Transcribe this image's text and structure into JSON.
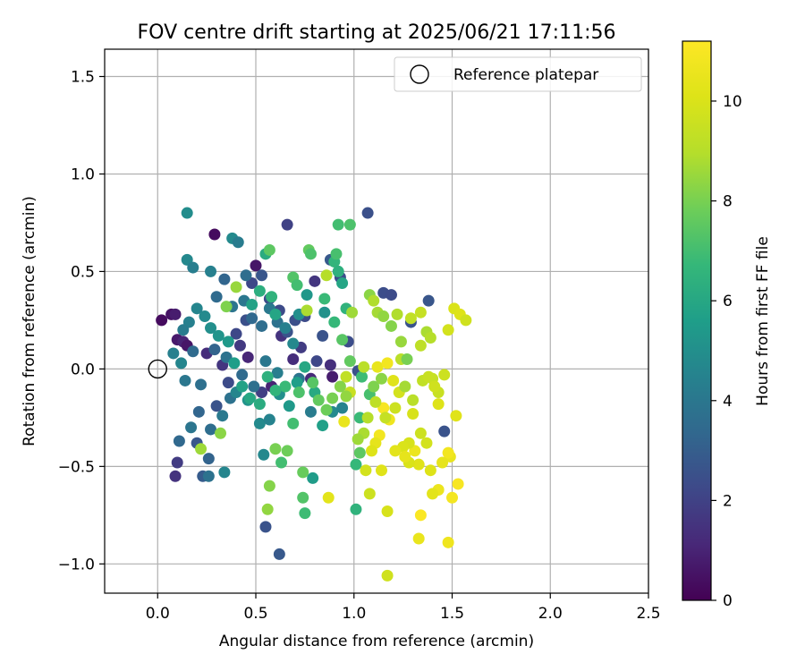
{
  "chart_data": {
    "type": "scatter",
    "title": "FOV centre drift starting at 2025/06/21 17:11:56",
    "xlabel": "Angular distance from reference (arcmin)",
    "ylabel": "Rotation from reference (arcmin)",
    "xlim": [
      -0.27,
      2.5
    ],
    "ylim": [
      -1.15,
      1.64
    ],
    "xticks": [
      "0.0",
      "0.5",
      "1.0",
      "1.5",
      "2.0",
      "2.5"
    ],
    "xtick_values": [
      0.0,
      0.5,
      1.0,
      1.5,
      2.0,
      2.5
    ],
    "yticks": [
      "−1.0",
      "−0.5",
      "0.0",
      "0.5",
      "1.0",
      "1.5"
    ],
    "ytick_values": [
      -1.0,
      -0.5,
      0.0,
      0.5,
      1.0,
      1.5
    ],
    "grid": true,
    "legend": {
      "position": "top-right",
      "entries": [
        "Reference platepar"
      ]
    },
    "reference_point": {
      "x": 0.0,
      "y": 0.0,
      "marker": "open-circle"
    },
    "colorbar": {
      "label": "Hours from first FF file",
      "colormap": "viridis",
      "range": [
        0,
        11.2
      ],
      "ticks": [
        "0",
        "2",
        "4",
        "6",
        "8",
        "10"
      ],
      "tick_values": [
        0,
        2,
        4,
        6,
        8,
        10
      ]
    },
    "points": [
      [
        0.02,
        0.25,
        0.3
      ],
      [
        0.07,
        0.28,
        0.5
      ],
      [
        0.09,
        0.28,
        0.8
      ],
      [
        0.1,
        0.15,
        0.7
      ],
      [
        0.13,
        0.14,
        1.0
      ],
      [
        0.15,
        0.12,
        0.6
      ],
      [
        0.29,
        0.69,
        0.3
      ],
      [
        0.5,
        0.53,
        0.6
      ],
      [
        0.09,
        -0.55,
        1.5
      ],
      [
        0.1,
        -0.48,
        1.8
      ],
      [
        0.25,
        0.08,
        1.3
      ],
      [
        0.46,
        0.06,
        1.1
      ],
      [
        0.58,
        -0.09,
        1.0
      ],
      [
        0.69,
        0.05,
        1.3
      ],
      [
        0.78,
        -0.05,
        1.2
      ],
      [
        0.88,
        0.02,
        1.4
      ],
      [
        0.89,
        -0.04,
        0.8
      ],
      [
        0.33,
        0.02,
        1.6
      ],
      [
        0.42,
        0.12,
        1.7
      ],
      [
        0.53,
        -0.12,
        1.9
      ],
      [
        0.63,
        0.17,
        1.5
      ],
      [
        0.73,
        0.11,
        1.8
      ],
      [
        0.8,
        0.45,
        1.6
      ],
      [
        0.66,
        0.74,
        2.0
      ],
      [
        1.07,
        0.8,
        2.5
      ],
      [
        0.62,
        -0.95,
        2.8
      ],
      [
        0.55,
        -0.81,
        2.6
      ],
      [
        0.23,
        -0.55,
        2.9
      ],
      [
        0.26,
        -0.46,
        3.2
      ],
      [
        0.2,
        -0.38,
        2.7
      ],
      [
        0.11,
        -0.37,
        3.4
      ],
      [
        0.3,
        -0.19,
        2.6
      ],
      [
        0.36,
        -0.07,
        2.3
      ],
      [
        0.4,
        0.18,
        2.2
      ],
      [
        0.45,
        0.25,
        2.5
      ],
      [
        0.48,
        0.44,
        2.2
      ],
      [
        0.53,
        0.48,
        2.7
      ],
      [
        0.57,
        0.36,
        2.4
      ],
      [
        0.62,
        0.3,
        2.3
      ],
      [
        0.66,
        0.19,
        2.6
      ],
      [
        0.7,
        0.25,
        2.5
      ],
      [
        0.75,
        0.27,
        2.3
      ],
      [
        0.81,
        0.04,
        2.2
      ],
      [
        0.84,
        0.17,
        2.6
      ],
      [
        0.88,
        0.56,
        2.8
      ],
      [
        0.93,
        0.47,
        2.4
      ],
      [
        0.97,
        0.14,
        2.4
      ],
      [
        1.02,
        -0.01,
        2.5
      ],
      [
        1.15,
        0.39,
        2.4
      ],
      [
        1.19,
        0.38,
        2.3
      ],
      [
        1.29,
        0.24,
        2.6
      ],
      [
        1.38,
        0.35,
        2.7
      ],
      [
        1.46,
        -0.32,
        2.6
      ],
      [
        0.15,
        0.8,
        4.9
      ],
      [
        0.15,
        0.56,
        4.7
      ],
      [
        0.18,
        0.52,
        4.3
      ],
      [
        0.27,
        0.5,
        4.4
      ],
      [
        0.38,
        0.67,
        4.8
      ],
      [
        0.41,
        0.65,
        4.2
      ],
      [
        0.45,
        0.48,
        3.6
      ],
      [
        0.34,
        0.46,
        3.3
      ],
      [
        0.3,
        0.37,
        3.5
      ],
      [
        0.38,
        0.32,
        3.9
      ],
      [
        0.44,
        0.35,
        4.0
      ],
      [
        0.48,
        0.26,
        3.4
      ],
      [
        0.53,
        0.22,
        3.6
      ],
      [
        0.57,
        0.31,
        4.1
      ],
      [
        0.61,
        0.24,
        3.8
      ],
      [
        0.65,
        0.21,
        4.4
      ],
      [
        0.69,
        0.13,
        4.7
      ],
      [
        0.72,
        0.28,
        5.0
      ],
      [
        0.76,
        0.38,
        5.3
      ],
      [
        0.85,
        0.29,
        5.1
      ],
      [
        0.89,
        -0.22,
        4.8
      ],
      [
        0.94,
        -0.2,
        4.5
      ],
      [
        0.78,
        -0.22,
        4.2
      ],
      [
        0.72,
        -0.05,
        3.9
      ],
      [
        0.61,
        -0.02,
        4.3
      ],
      [
        0.55,
        0.04,
        4.0
      ],
      [
        0.49,
        -0.09,
        3.7
      ],
      [
        0.43,
        -0.03,
        3.5
      ],
      [
        0.37,
        -0.15,
        3.8
      ],
      [
        0.33,
        -0.24,
        4.1
      ],
      [
        0.27,
        -0.31,
        3.6
      ],
      [
        0.21,
        -0.22,
        3.3
      ],
      [
        0.17,
        -0.3,
        3.9
      ],
      [
        0.14,
        -0.06,
        4.0
      ],
      [
        0.12,
        0.03,
        4.6
      ],
      [
        0.08,
        0.08,
        4.4
      ],
      [
        0.18,
        0.09,
        3.5
      ],
      [
        0.22,
        -0.08,
        3.7
      ],
      [
        0.29,
        0.1,
        3.2
      ],
      [
        0.35,
        0.06,
        3.8
      ],
      [
        0.4,
        -0.12,
        4.6
      ],
      [
        0.46,
        -0.16,
        5.2
      ],
      [
        0.52,
        -0.28,
        4.8
      ],
      [
        0.57,
        -0.26,
        4.5
      ],
      [
        0.62,
        -0.13,
        5.0
      ],
      [
        0.67,
        -0.19,
        5.4
      ],
      [
        0.71,
        -0.07,
        5.6
      ],
      [
        0.75,
        0.01,
        6.0
      ],
      [
        0.8,
        -0.12,
        6.1
      ],
      [
        0.84,
        -0.29,
        5.7
      ],
      [
        0.79,
        -0.56,
        5.5
      ],
      [
        0.54,
        -0.44,
        4.7
      ],
      [
        0.34,
        -0.53,
        4.6
      ],
      [
        0.26,
        -0.55,
        3.8
      ],
      [
        0.48,
        0.33,
        5.8
      ],
      [
        0.52,
        0.4,
        6.3
      ],
      [
        0.58,
        0.37,
        6.5
      ],
      [
        0.6,
        0.28,
        5.9
      ],
      [
        0.55,
        0.59,
        6.2
      ],
      [
        0.57,
        0.61,
        7.5
      ],
      [
        0.69,
        0.47,
        7.3
      ],
      [
        0.71,
        0.43,
        7.0
      ],
      [
        0.77,
        0.61,
        7.6
      ],
      [
        0.78,
        0.59,
        7.2
      ],
      [
        0.85,
        0.36,
        6.8
      ],
      [
        0.9,
        0.55,
        6.6
      ],
      [
        0.92,
        0.5,
        6.4
      ],
      [
        0.94,
        0.44,
        5.9
      ],
      [
        0.91,
        0.59,
        7.1
      ],
      [
        0.92,
        0.74,
        7.0
      ],
      [
        0.98,
        0.74,
        7.2
      ],
      [
        0.96,
        0.31,
        6.5
      ],
      [
        0.9,
        0.24,
        6.7
      ],
      [
        0.94,
        0.15,
        7.4
      ],
      [
        0.98,
        0.04,
        7.6
      ],
      [
        1.04,
        -0.04,
        6.9
      ],
      [
        1.08,
        -0.13,
        7.1
      ],
      [
        1.03,
        -0.25,
        6.8
      ],
      [
        1.01,
        -0.49,
        6.7
      ],
      [
        1.01,
        -0.72,
        6.5
      ],
      [
        0.75,
        -0.74,
        6.9
      ],
      [
        0.74,
        -0.66,
        7.3
      ],
      [
        0.74,
        -0.53,
        7.7
      ],
      [
        0.63,
        -0.48,
        7.0
      ],
      [
        0.66,
        -0.42,
        7.8
      ],
      [
        0.6,
        -0.41,
        8.0
      ],
      [
        0.57,
        -0.6,
        8.2
      ],
      [
        0.56,
        -0.72,
        8.4
      ],
      [
        0.22,
        -0.41,
        8.6
      ],
      [
        0.32,
        -0.33,
        8.3
      ],
      [
        0.4,
        0.42,
        8.5
      ],
      [
        0.35,
        0.32,
        8.1
      ],
      [
        0.76,
        0.3,
        8.8
      ],
      [
        0.86,
        0.48,
        9.0
      ],
      [
        0.99,
        0.29,
        8.6
      ],
      [
        1.08,
        0.38,
        8.3
      ],
      [
        1.1,
        0.35,
        8.9
      ],
      [
        1.12,
        0.29,
        8.7
      ],
      [
        1.15,
        0.27,
        8.4
      ],
      [
        1.19,
        0.22,
        8.2
      ],
      [
        1.22,
        0.28,
        8.9
      ],
      [
        1.24,
        0.14,
        8.5
      ],
      [
        1.24,
        0.05,
        9.1
      ],
      [
        1.27,
        0.05,
        8.0
      ],
      [
        1.29,
        0.26,
        9.3
      ],
      [
        1.34,
        0.29,
        9.4
      ],
      [
        1.34,
        0.12,
        9.2
      ],
      [
        1.37,
        0.19,
        8.8
      ],
      [
        1.39,
        0.16,
        9.0
      ],
      [
        1.4,
        -0.05,
        9.4
      ],
      [
        1.43,
        -0.12,
        9.5
      ],
      [
        1.46,
        -0.03,
        9.6
      ],
      [
        1.48,
        0.2,
        9.8
      ],
      [
        1.51,
        0.31,
        10.0
      ],
      [
        1.54,
        0.28,
        10.1
      ],
      [
        1.57,
        0.25,
        9.7
      ],
      [
        1.52,
        -0.24,
        10.2
      ],
      [
        1.49,
        -0.45,
        10.5
      ],
      [
        1.48,
        -0.43,
        10.8
      ],
      [
        1.45,
        -0.48,
        10.4
      ],
      [
        1.43,
        -0.62,
        10.6
      ],
      [
        1.4,
        -0.64,
        10.3
      ],
      [
        1.5,
        -0.66,
        10.9
      ],
      [
        1.53,
        -0.59,
        11.0
      ],
      [
        1.48,
        -0.89,
        10.7
      ],
      [
        1.33,
        -0.87,
        10.5
      ],
      [
        1.34,
        -0.75,
        11.1
      ],
      [
        1.33,
        -0.49,
        10.2
      ],
      [
        1.31,
        -0.42,
        10.6
      ],
      [
        1.28,
        -0.38,
        9.9
      ],
      [
        1.25,
        -0.4,
        10.0
      ],
      [
        1.21,
        -0.42,
        10.3
      ],
      [
        1.18,
        -0.26,
        10.7
      ],
      [
        1.15,
        -0.2,
        11.0
      ],
      [
        1.13,
        -0.34,
        10.8
      ],
      [
        1.11,
        -0.38,
        10.4
      ],
      [
        1.09,
        -0.42,
        10.1
      ],
      [
        1.06,
        -0.52,
        9.8
      ],
      [
        1.08,
        -0.64,
        9.6
      ],
      [
        1.17,
        -0.73,
        9.9
      ],
      [
        1.14,
        -0.52,
        10.2
      ],
      [
        1.17,
        -1.06,
        9.7
      ],
      [
        0.87,
        -0.66,
        10.3
      ],
      [
        0.95,
        -0.27,
        10.5
      ],
      [
        0.98,
        -0.12,
        9.5
      ],
      [
        0.96,
        -0.04,
        9.3
      ],
      [
        1.05,
        0.01,
        9.1
      ],
      [
        1.12,
        0.01,
        10.5
      ],
      [
        1.17,
        0.03,
        10.8
      ],
      [
        1.2,
        -0.06,
        10.2
      ],
      [
        1.23,
        -0.12,
        9.8
      ],
      [
        1.21,
        -0.2,
        9.6
      ],
      [
        1.16,
        -0.25,
        9.4
      ],
      [
        1.11,
        -0.17,
        9.2
      ],
      [
        1.07,
        -0.25,
        9.0
      ],
      [
        1.05,
        -0.33,
        8.8
      ],
      [
        1.02,
        -0.36,
        8.6
      ],
      [
        0.96,
        -0.14,
        8.4
      ],
      [
        0.93,
        -0.09,
        8.2
      ],
      [
        0.89,
        -0.15,
        8.0
      ],
      [
        0.86,
        -0.21,
        7.8
      ],
      [
        0.82,
        -0.16,
        7.6
      ],
      [
        0.79,
        -0.07,
        7.4
      ],
      [
        0.72,
        -0.12,
        7.2
      ],
      [
        0.69,
        -0.28,
        7.0
      ],
      [
        0.65,
        -0.09,
        6.8
      ],
      [
        0.6,
        -0.11,
        6.6
      ],
      [
        0.56,
        -0.04,
        6.4
      ],
      [
        0.52,
        -0.18,
        6.2
      ],
      [
        0.47,
        -0.15,
        6.0
      ],
      [
        0.43,
        -0.09,
        5.8
      ],
      [
        0.39,
        0.03,
        5.6
      ],
      [
        0.36,
        0.14,
        5.4
      ],
      [
        0.31,
        0.17,
        5.2
      ],
      [
        0.27,
        0.21,
        5.0
      ],
      [
        0.24,
        0.27,
        4.8
      ],
      [
        0.2,
        0.31,
        4.6
      ],
      [
        0.16,
        0.24,
        4.4
      ],
      [
        0.13,
        0.2,
        4.2
      ],
      [
        1.03,
        -0.43,
        7.5
      ],
      [
        1.1,
        -0.09,
        8.1
      ],
      [
        1.14,
        -0.05,
        8.3
      ],
      [
        1.26,
        -0.09,
        8.7
      ],
      [
        1.3,
        -0.16,
        9.1
      ],
      [
        1.35,
        -0.06,
        9.3
      ],
      [
        1.38,
        -0.04,
        9.5
      ],
      [
        1.41,
        -0.09,
        9.7
      ],
      [
        1.43,
        -0.18,
        10.1
      ],
      [
        1.3,
        -0.23,
        9.9
      ],
      [
        1.34,
        -0.33,
        9.6
      ],
      [
        1.37,
        -0.38,
        9.8
      ],
      [
        1.28,
        -0.48,
        10.0
      ],
      [
        1.26,
        -0.45,
        10.4
      ],
      [
        1.39,
        -0.52,
        10.1
      ]
    ]
  }
}
